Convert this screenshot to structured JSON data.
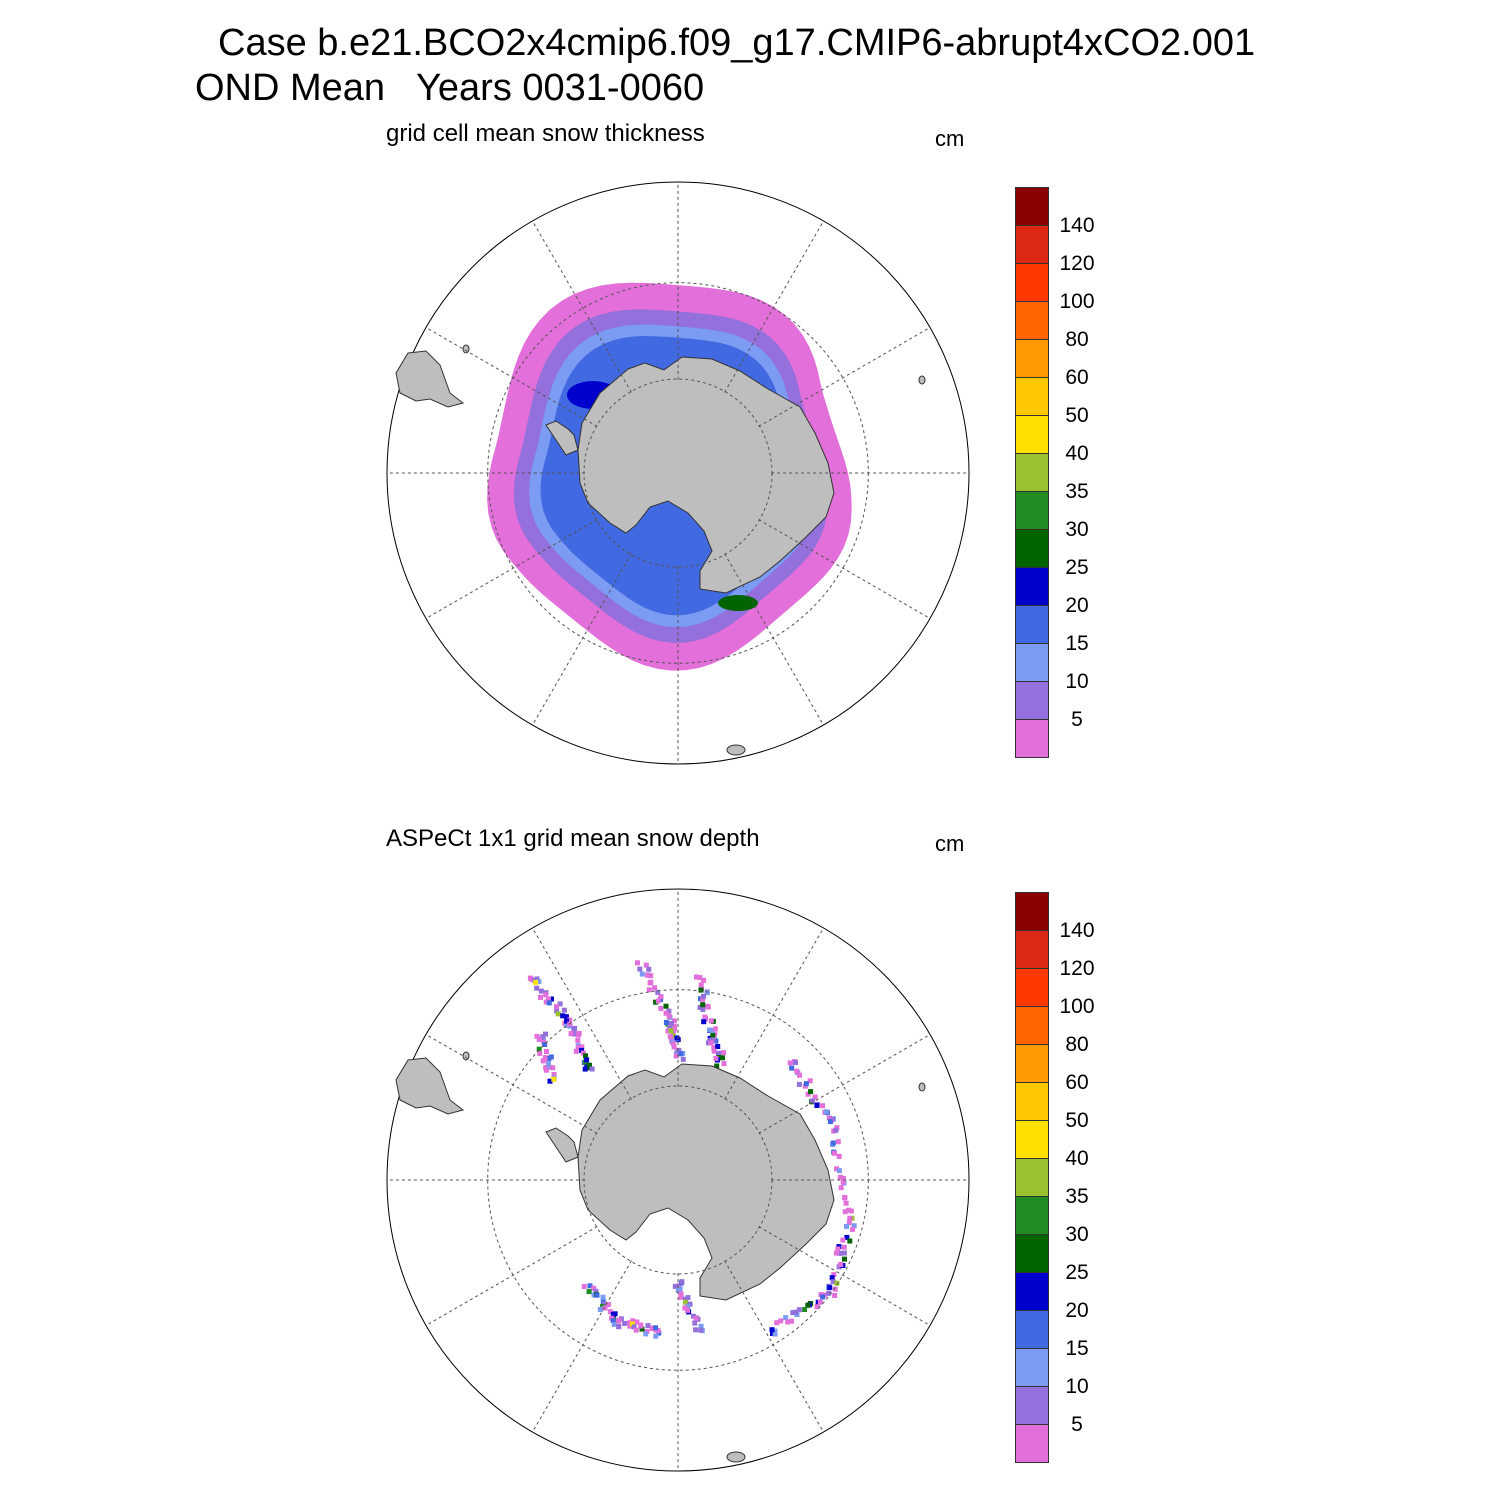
{
  "title": {
    "line1": "Case b.e21.BCO2x4cmip6.f09_g17.CMIP6-abrupt4xCO2.001",
    "line2": "OND Mean   Years 0031-0060"
  },
  "colors": {
    "land": "#bebebe",
    "coast": "#333333",
    "grid": "#555555"
  },
  "colorbar": {
    "units": "cm",
    "levels": [
      "5",
      "10",
      "15",
      "20",
      "25",
      "30",
      "35",
      "40",
      "50",
      "60",
      "80",
      "100",
      "120",
      "140"
    ],
    "colors": [
      "#e36fdb",
      "#9370db",
      "#7b9cf2",
      "#4169e1",
      "#0000cd",
      "#006400",
      "#228b22",
      "#9ac131",
      "#ffe100",
      "#ffc800",
      "#ff9b00",
      "#ff6400",
      "#ff3700",
      "#dc2815",
      "#8b0000"
    ]
  },
  "panels": [
    {
      "title": "grid cell mean snow thickness",
      "units": "cm",
      "field": "model",
      "dominant_classes": [
        "5",
        "10",
        "15",
        "20",
        "25"
      ]
    },
    {
      "title": "ASPeCt 1x1 grid mean snow depth",
      "units": "cm",
      "field": "observations",
      "dominant_classes": [
        "5",
        "10",
        "15",
        "20",
        "25",
        "30",
        "35",
        "40",
        "50"
      ]
    }
  ]
}
